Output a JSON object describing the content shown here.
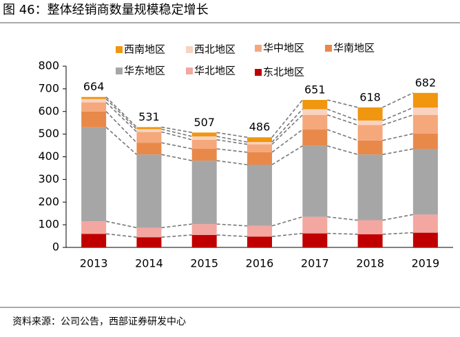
{
  "header": {
    "title": "图 46：整体经销商数量规模稳定增长"
  },
  "chart_data": {
    "type": "stacked-bar",
    "categories": [
      "2013",
      "2014",
      "2015",
      "2016",
      "2017",
      "2018",
      "2019"
    ],
    "series": [
      {
        "name": "西南地区",
        "color": "#f0960f",
        "values": [
          9,
          9,
          17,
          21,
          41,
          58,
          65
        ]
      },
      {
        "name": "西北地区",
        "color": "#f9d2c0",
        "values": [
          15,
          12,
          15,
          10,
          25,
          20,
          32
        ]
      },
      {
        "name": "华中地区",
        "color": "#f5a87c",
        "values": [
          40,
          48,
          40,
          35,
          65,
          68,
          83
        ]
      },
      {
        "name": "华南地区",
        "color": "#e8894a",
        "values": [
          70,
          52,
          52,
          55,
          72,
          62,
          67
        ]
      },
      {
        "name": "华东地区",
        "color": "#a6a6a6",
        "values": [
          415,
          323,
          280,
          270,
          313,
          290,
          290
        ]
      },
      {
        "name": "华北地区",
        "color": "#f4a6a0",
        "values": [
          55,
          42,
          48,
          47,
          73,
          62,
          80
        ]
      },
      {
        "name": "东北地区",
        "color": "#c00000",
        "values": [
          60,
          45,
          55,
          48,
          62,
          58,
          65
        ]
      }
    ],
    "totals": [
      664,
      531,
      507,
      486,
      651,
      618,
      682
    ],
    "ylim": [
      0,
      800
    ],
    "yticks": [
      0,
      100,
      200,
      300,
      400,
      500,
      600,
      700,
      800
    ]
  },
  "footer": {
    "source": "资料来源：公司公告，西部证券研发中心"
  }
}
